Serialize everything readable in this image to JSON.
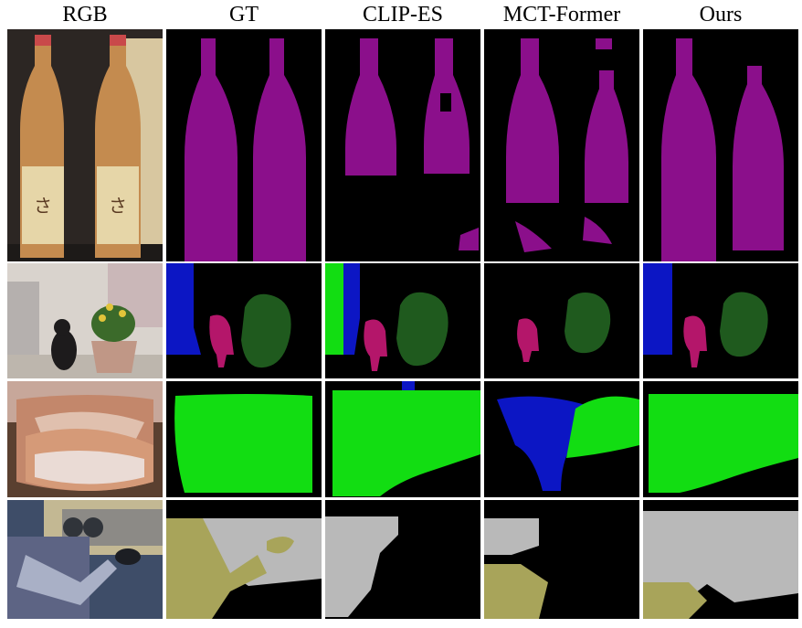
{
  "columns": [
    {
      "key": "rgb",
      "label": "RGB"
    },
    {
      "key": "gt",
      "label": "GT"
    },
    {
      "key": "clipes",
      "label": "CLIP-ES"
    },
    {
      "key": "mctformer",
      "label": "MCT-Former"
    },
    {
      "key": "ours",
      "label": "Ours"
    }
  ],
  "rows": [
    {
      "key": "bottles"
    },
    {
      "key": "dog-plant"
    },
    {
      "key": "pillow"
    },
    {
      "key": "motorbike"
    }
  ],
  "class_colors": {
    "bottle": "#8b0f8b",
    "person_or_chair": "#0c16c4",
    "dog": "#b4166a",
    "pottedplant": "#1f5a1e",
    "sofa": "#12dd12",
    "car": "#b9b9b9",
    "motorbike": "#a8a45a",
    "background": "#000000"
  }
}
